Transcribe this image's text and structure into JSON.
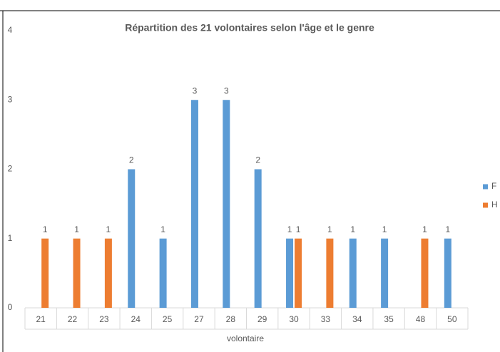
{
  "chart_data": {
    "type": "bar",
    "title": "Répartition des 21 volontaires selon l'âge et le genre",
    "x_label": "volontaire",
    "categories": [
      "21",
      "22",
      "23",
      "24",
      "25",
      "27",
      "28",
      "29",
      "30",
      "33",
      "34",
      "35",
      "48",
      "50"
    ],
    "series": [
      {
        "name": "F",
        "color": "#5b9bd5",
        "values": [
          null,
          null,
          null,
          2,
          1,
          3,
          3,
          2,
          1,
          null,
          1,
          1,
          null,
          1
        ]
      },
      {
        "name": "H",
        "color": "#ed7d31",
        "values": [
          1,
          1,
          1,
          null,
          null,
          null,
          null,
          null,
          1,
          1,
          null,
          null,
          1,
          null
        ]
      }
    ],
    "ylim": [
      0,
      4
    ],
    "yticks": [
      0,
      1,
      2,
      3,
      4
    ],
    "grid": false,
    "legend": "right"
  }
}
